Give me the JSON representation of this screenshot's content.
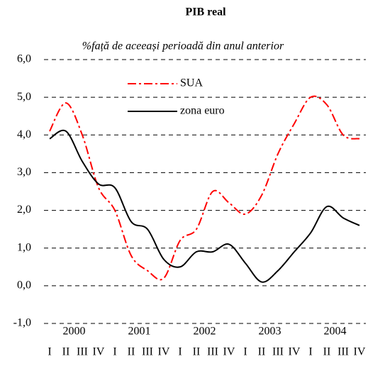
{
  "chart_data": {
    "type": "line",
    "title": "PIB real",
    "subtitle": "%față de aceeași perioadă din anul anterior",
    "categories": [
      "I",
      "II",
      "III",
      "IV",
      "I",
      "II",
      "III",
      "IV",
      "I",
      "II",
      "III",
      "IV",
      "I",
      "II",
      "III",
      "IV",
      "I",
      "II",
      "III",
      "IV"
    ],
    "year_labels": [
      "2000",
      "2001",
      "2002",
      "2003",
      "2004"
    ],
    "series": [
      {
        "name": "SUA",
        "color": "#ff0000",
        "dash": "dashdot",
        "values": [
          4.1,
          4.85,
          4.0,
          2.6,
          2.0,
          0.8,
          0.4,
          0.2,
          1.2,
          1.5,
          2.5,
          2.2,
          1.9,
          2.4,
          3.5,
          4.3,
          5.0,
          4.8,
          4.0,
          3.9
        ]
      },
      {
        "name": "zona euro",
        "color": "#000000",
        "dash": "solid",
        "values": [
          3.9,
          4.1,
          3.3,
          2.7,
          2.6,
          1.7,
          1.5,
          0.7,
          0.5,
          0.9,
          0.9,
          1.1,
          0.6,
          0.1,
          0.4,
          0.9,
          1.4,
          2.1,
          1.8,
          1.6
        ]
      }
    ],
    "ylim": [
      -1,
      6
    ],
    "yticks": [
      {
        "value": -1,
        "label": "-1,0"
      },
      {
        "value": 0,
        "label": "0,0"
      },
      {
        "value": 1,
        "label": "1,0"
      },
      {
        "value": 2,
        "label": "2,0"
      },
      {
        "value": 3,
        "label": "3,0"
      },
      {
        "value": 4,
        "label": "4,0"
      },
      {
        "value": 5,
        "label": "5,0"
      },
      {
        "value": 6,
        "label": "6,0"
      }
    ],
    "grid": true
  }
}
